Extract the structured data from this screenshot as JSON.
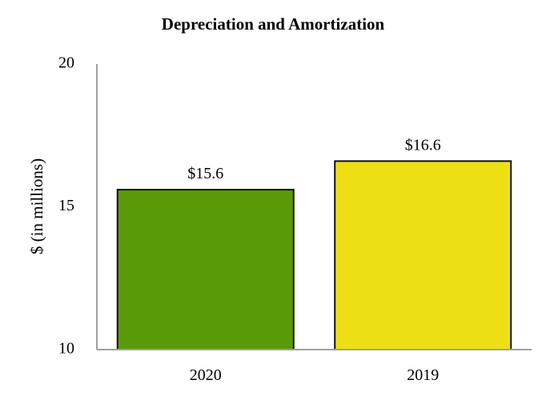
{
  "chart_data": {
    "type": "bar",
    "title": "Depreciation and Amortization",
    "ylabel": "$ (in millions)",
    "xlabel": "",
    "categories": [
      "2020",
      "2019"
    ],
    "values": [
      15.6,
      16.6
    ],
    "data_labels": [
      "$15.6",
      "$16.6"
    ],
    "colors": [
      "#5a9a08",
      "#eddf14"
    ],
    "ylim": [
      10,
      20
    ],
    "yticks": [
      10,
      15,
      20
    ],
    "grid": false,
    "legend": "none"
  }
}
